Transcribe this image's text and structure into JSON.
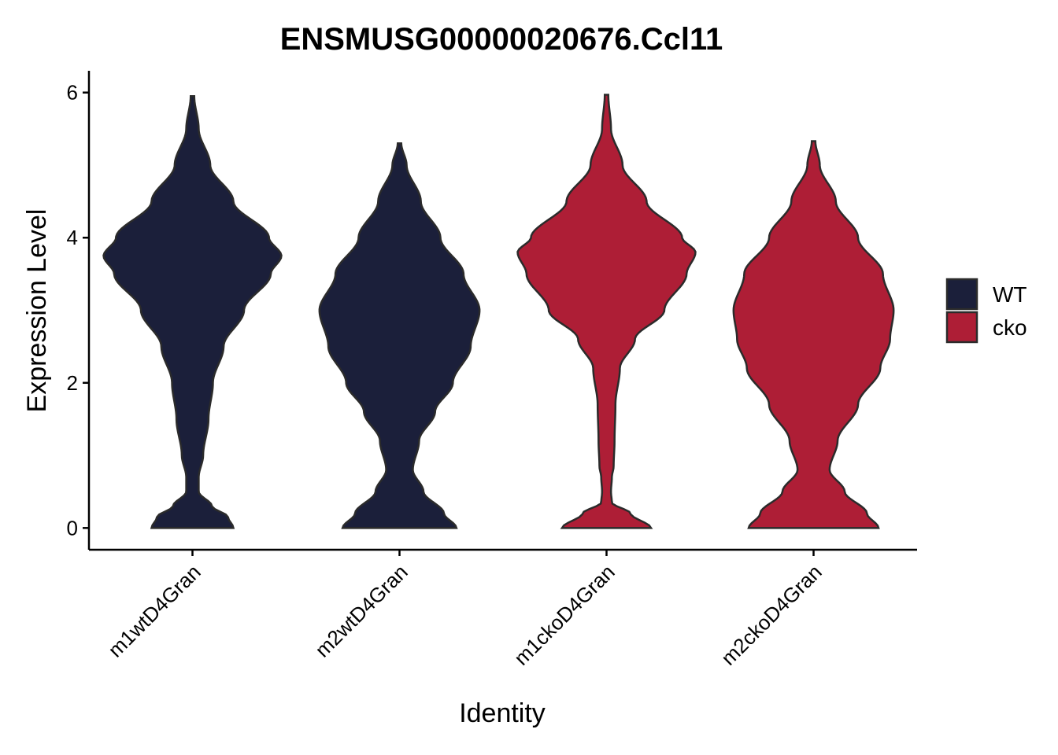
{
  "chart_data": {
    "type": "violin",
    "title": "ENSMUSG00000020676.Ccl11",
    "xlabel": "Identity",
    "ylabel": "Expression Level",
    "ylim": [
      -0.3,
      6.3
    ],
    "yticks": [
      0,
      2,
      4,
      6
    ],
    "categories": [
      "m1wtD4Gran",
      "m2wtD4Gran",
      "m1ckoD4Gran",
      "m2ckoD4Gran"
    ],
    "category_groups": [
      "WT",
      "WT",
      "cko",
      "cko"
    ],
    "legend": {
      "position": "right",
      "entries": [
        {
          "name": "WT",
          "color": "#1b1f3a"
        },
        {
          "name": "cko",
          "color": "#ae1e36"
        }
      ]
    },
    "violins": [
      {
        "category": "m1wtD4Gran",
        "group": "WT",
        "max": 5.95,
        "profile": [
          [
            0,
            0.46
          ],
          [
            0.15,
            0.4
          ],
          [
            0.3,
            0.22
          ],
          [
            0.5,
            0.07
          ],
          [
            0.7,
            0.07
          ],
          [
            1.0,
            0.12
          ],
          [
            1.5,
            0.18
          ],
          [
            2.0,
            0.23
          ],
          [
            2.5,
            0.35
          ],
          [
            3.0,
            0.58
          ],
          [
            3.5,
            0.88
          ],
          [
            3.75,
            1.0
          ],
          [
            4.0,
            0.86
          ],
          [
            4.5,
            0.46
          ],
          [
            5.0,
            0.2
          ],
          [
            5.5,
            0.07
          ],
          [
            5.95,
            0.02
          ]
        ]
      },
      {
        "category": "m2wtD4Gran",
        "group": "WT",
        "max": 5.3,
        "profile": [
          [
            0,
            0.64
          ],
          [
            0.2,
            0.5
          ],
          [
            0.5,
            0.27
          ],
          [
            0.8,
            0.15
          ],
          [
            1.2,
            0.22
          ],
          [
            1.6,
            0.4
          ],
          [
            2.0,
            0.6
          ],
          [
            2.5,
            0.8
          ],
          [
            3.0,
            0.9
          ],
          [
            3.5,
            0.72
          ],
          [
            4.0,
            0.46
          ],
          [
            4.5,
            0.24
          ],
          [
            5.0,
            0.08
          ],
          [
            5.3,
            0.02
          ]
        ]
      },
      {
        "category": "m1ckoD4Gran",
        "group": "cko",
        "max": 5.97,
        "profile": [
          [
            0,
            0.5
          ],
          [
            0.2,
            0.27
          ],
          [
            0.35,
            0.06
          ],
          [
            0.5,
            0.05
          ],
          [
            0.7,
            0.06
          ],
          [
            0.85,
            0.08
          ],
          [
            1.2,
            0.09
          ],
          [
            1.7,
            0.1
          ],
          [
            2.2,
            0.15
          ],
          [
            2.6,
            0.32
          ],
          [
            3.0,
            0.65
          ],
          [
            3.5,
            0.9
          ],
          [
            3.8,
            1.0
          ],
          [
            4.0,
            0.85
          ],
          [
            4.5,
            0.45
          ],
          [
            5.0,
            0.18
          ],
          [
            5.5,
            0.05
          ],
          [
            5.97,
            0.02
          ]
        ]
      },
      {
        "category": "m2ckoD4Gran",
        "group": "cko",
        "max": 5.33,
        "profile": [
          [
            0,
            0.73
          ],
          [
            0.2,
            0.6
          ],
          [
            0.5,
            0.35
          ],
          [
            0.8,
            0.18
          ],
          [
            1.2,
            0.27
          ],
          [
            1.7,
            0.5
          ],
          [
            2.2,
            0.75
          ],
          [
            2.6,
            0.86
          ],
          [
            3.0,
            0.9
          ],
          [
            3.5,
            0.78
          ],
          [
            4.0,
            0.5
          ],
          [
            4.5,
            0.25
          ],
          [
            5.0,
            0.07
          ],
          [
            5.33,
            0.02
          ]
        ]
      }
    ]
  }
}
